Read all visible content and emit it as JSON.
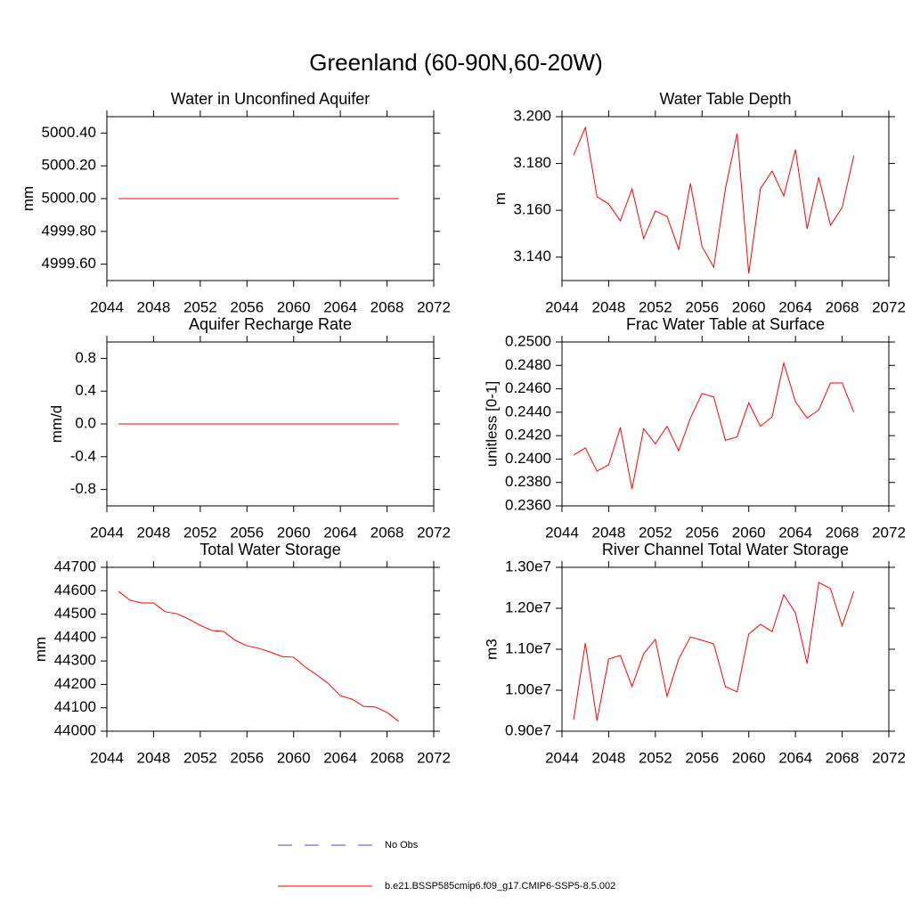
{
  "title": "Greenland (60-90N,60-20W)",
  "legend": [
    {
      "name": "No Obs",
      "color": "#4a4ad0",
      "dashed": true
    },
    {
      "name": "b.e21.BSSP585cmip6.f09_g17.CMIP6-SSP5-8.5.002",
      "color": "#ff0000",
      "dashed": false
    }
  ],
  "chart_data": [
    {
      "type": "line",
      "title": "Water in Unconfined Aquifer",
      "ylabel": "mm",
      "color": "#ff0000",
      "x": [
        2045,
        2046,
        2047,
        2048,
        2049,
        2050,
        2051,
        2052,
        2053,
        2054,
        2055,
        2056,
        2057,
        2058,
        2059,
        2060,
        2061,
        2062,
        2063,
        2064,
        2065,
        2066,
        2067,
        2068,
        2069
      ],
      "values": [
        5000,
        5000,
        5000,
        5000,
        5000,
        5000,
        5000,
        5000,
        5000,
        5000,
        5000,
        5000,
        5000,
        5000,
        5000,
        5000,
        5000,
        5000,
        5000,
        5000,
        5000,
        5000,
        5000,
        5000,
        5000
      ],
      "xlim": [
        2044,
        2072
      ],
      "xticks": [
        2044,
        2048,
        2052,
        2056,
        2060,
        2064,
        2068,
        2072
      ],
      "ylim": [
        4999.5,
        5000.5
      ],
      "yticks": [
        {
          "value": 4999.6,
          "label": "4999.60"
        },
        {
          "value": 4999.8,
          "label": "4999.80"
        },
        {
          "value": 5000,
          "label": "5000.00"
        },
        {
          "value": 5000.2,
          "label": "5000.20"
        },
        {
          "value": 5000.4,
          "label": "5000.40"
        }
      ]
    },
    {
      "type": "line",
      "title": "Water Table Depth",
      "ylabel": "m",
      "color": "#ff0000",
      "x": [
        2045,
        2046,
        2047,
        2048,
        2049,
        2050,
        2051,
        2052,
        2053,
        2054,
        2055,
        2056,
        2057,
        2058,
        2059,
        2060,
        2061,
        2062,
        2063,
        2064,
        2065,
        2066,
        2067,
        2068,
        2069
      ],
      "values": [
        3.1836,
        3.1954,
        3.1658,
        3.1627,
        3.1555,
        3.1692,
        3.1479,
        3.1597,
        3.1574,
        3.1433,
        3.1715,
        3.1445,
        3.1357,
        3.1692,
        3.1928,
        3.133,
        3.1692,
        3.1768,
        3.1661,
        3.1859,
        3.1521,
        3.1741,
        3.1536,
        3.1612,
        3.1833
      ],
      "xlim": [
        2044,
        2072
      ],
      "xticks": [
        2044,
        2048,
        2052,
        2056,
        2060,
        2064,
        2068,
        2072
      ],
      "ylim": [
        3.13,
        3.2
      ],
      "yticks": [
        {
          "value": 3.14,
          "label": "3.140"
        },
        {
          "value": 3.16,
          "label": "3.160"
        },
        {
          "value": 3.18,
          "label": "3.180"
        },
        {
          "value": 3.2,
          "label": "3.200"
        }
      ]
    },
    {
      "type": "line",
      "title": "Aquifer Recharge Rate",
      "ylabel": "mm/d",
      "color": "#ff0000",
      "x": [
        2045,
        2046,
        2047,
        2048,
        2049,
        2050,
        2051,
        2052,
        2053,
        2054,
        2055,
        2056,
        2057,
        2058,
        2059,
        2060,
        2061,
        2062,
        2063,
        2064,
        2065,
        2066,
        2067,
        2068,
        2069
      ],
      "values": [
        0,
        0,
        0,
        0,
        0,
        0,
        0,
        0,
        0,
        0,
        0,
        0,
        0,
        0,
        0,
        0,
        0,
        0,
        0,
        0,
        0,
        0,
        0,
        0,
        0
      ],
      "xlim": [
        2044,
        2072
      ],
      "xticks": [
        2044,
        2048,
        2052,
        2056,
        2060,
        2064,
        2068,
        2072
      ],
      "ylim": [
        -1,
        1
      ],
      "yticks": [
        -0.8,
        -0.4,
        {
          "value": 0,
          "label": "0.0"
        },
        0.4,
        0.8
      ]
    },
    {
      "type": "line",
      "title": "Frac Water Table at Surface",
      "ylabel": "unitless [0-1]",
      "color": "#ff0000",
      "x": [
        2045,
        2046,
        2047,
        2048,
        2049,
        2050,
        2051,
        2052,
        2053,
        2054,
        2055,
        2056,
        2057,
        2058,
        2059,
        2060,
        2061,
        2062,
        2063,
        2064,
        2065,
        2066,
        2067,
        2068,
        2069
      ],
      "values": [
        0.24034,
        0.24095,
        0.23897,
        0.2395,
        0.2427,
        0.23745,
        0.2426,
        0.2413,
        0.2428,
        0.2407,
        0.2435,
        0.2456,
        0.2453,
        0.2416,
        0.2419,
        0.2448,
        0.2428,
        0.2436,
        0.2482,
        0.2449,
        0.2435,
        0.2442,
        0.2465,
        0.2465,
        0.244
      ],
      "xlim": [
        2044,
        2072
      ],
      "xticks": [
        2044,
        2048,
        2052,
        2056,
        2060,
        2064,
        2068,
        2072
      ],
      "ylim": [
        0.236,
        0.25
      ],
      "yticks": [
        {
          "value": 0.236,
          "label": "0.2360"
        },
        {
          "value": 0.238,
          "label": "0.2380"
        },
        {
          "value": 0.24,
          "label": "0.2400"
        },
        {
          "value": 0.242,
          "label": "0.2420"
        },
        {
          "value": 0.244,
          "label": "0.2440"
        },
        {
          "value": 0.246,
          "label": "0.2460"
        },
        {
          "value": 0.248,
          "label": "0.2480"
        },
        {
          "value": 0.25,
          "label": "0.2500"
        }
      ]
    },
    {
      "type": "line",
      "title": "Total Water Storage",
      "ylabel": "mm",
      "color": "#ff0000",
      "x": [
        2045,
        2046,
        2047,
        2048,
        2049,
        2050,
        2051,
        2052,
        2053,
        2054,
        2055,
        2056,
        2057,
        2058,
        2059,
        2060,
        2061,
        2062,
        2063,
        2064,
        2065,
        2066,
        2067,
        2068,
        2069
      ],
      "values": [
        44597,
        44559,
        44548,
        44548,
        44510,
        44502,
        44479,
        44452,
        44430,
        44426,
        44388,
        44365,
        44354,
        44338,
        44319,
        44316,
        44274,
        44240,
        44202,
        44152,
        44137,
        44106,
        44103,
        44080,
        44042
      ],
      "xlim": [
        2044,
        2072
      ],
      "xticks": [
        2044,
        2048,
        2052,
        2056,
        2060,
        2064,
        2068,
        2072
      ],
      "ylim": [
        44000,
        44700
      ],
      "yticks": [
        44000,
        44100,
        44200,
        44300,
        44400,
        44500,
        44600,
        44700
      ]
    },
    {
      "type": "line",
      "title": "River Channel Total Water Storage",
      "ylabel": "m3",
      "color": "#ff0000",
      "x": [
        2045,
        2046,
        2047,
        2048,
        2049,
        2050,
        2051,
        2052,
        2053,
        2054,
        2055,
        2056,
        2057,
        2058,
        2059,
        2060,
        2061,
        2062,
        2063,
        2064,
        2065,
        2066,
        2067,
        2068,
        2069
      ],
      "values": [
        9280000,
        11150000,
        9260000,
        10760000,
        10850000,
        10090000,
        10890000,
        11240000,
        9850000,
        10760000,
        11300000,
        11220000,
        11130000,
        10090000,
        9960000,
        11370000,
        11610000,
        11430000,
        12330000,
        11890000,
        10650000,
        12630000,
        12480000,
        11570000,
        12410000
      ],
      "xlim": [
        2044,
        2072
      ],
      "xticks": [
        2044,
        2048,
        2052,
        2056,
        2060,
        2064,
        2068,
        2072
      ],
      "ylim": [
        9000000,
        13000000
      ],
      "yticks": [
        {
          "value": 9000000,
          "label": "0.90e7"
        },
        {
          "value": 10000000,
          "label": "1.00e7"
        },
        {
          "value": 11000000,
          "label": "1.10e7"
        },
        {
          "value": 12000000,
          "label": "1.20e7"
        },
        {
          "value": 13000000,
          "label": "1.30e7"
        }
      ]
    }
  ]
}
